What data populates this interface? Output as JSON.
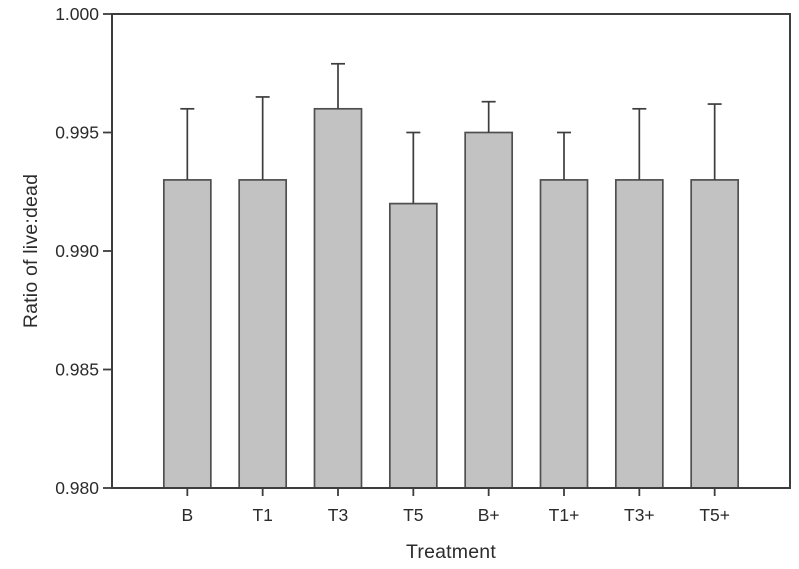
{
  "chart_data": {
    "type": "bar",
    "title": "",
    "xlabel": "Treatment",
    "ylabel": "Ratio of live:dead",
    "categories": [
      "B",
      "T1",
      "T3",
      "T5",
      "B+",
      "T1+",
      "T3+",
      "T5+"
    ],
    "values": [
      0.993,
      0.993,
      0.996,
      0.992,
      0.995,
      0.993,
      0.993,
      0.993
    ],
    "error_plus": [
      0.003,
      0.0035,
      0.0019,
      0.003,
      0.0013,
      0.002,
      0.003,
      0.0032
    ],
    "ylim": [
      0.98,
      1.0
    ],
    "yticks": [
      0.98,
      0.985,
      0.99,
      0.995,
      1.0
    ],
    "ytick_decimals": 3,
    "grid": false,
    "legend_position": "none",
    "frame": "box",
    "colors": {
      "bar_fill": "#c2c2c2",
      "bar_stroke": "#4f4f4f",
      "error_stroke": "#3d3d3d",
      "axis": "#3d3d3d",
      "text": "#2b2b2b",
      "background": "#ffffff"
    }
  }
}
